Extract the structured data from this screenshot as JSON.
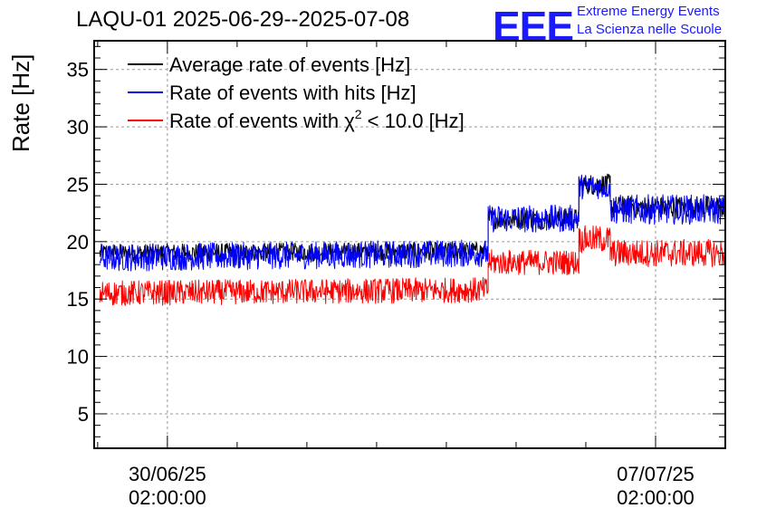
{
  "header": {
    "title": "LAQU-01 2025-06-29--2025-07-08",
    "logo_text": "EEE",
    "logo_line1": "Extreme Energy Events",
    "logo_line2": "La Scienza nelle Scuole"
  },
  "chart_data": {
    "type": "line",
    "title": "LAQU-01 2025-06-29--2025-07-08",
    "ylabel": "Rate [Hz]",
    "xlabel": "",
    "ylim": [
      2,
      37.5
    ],
    "xlim_days": [
      -1.05,
      8.0
    ],
    "yticks": [
      5,
      10,
      15,
      20,
      25,
      30,
      35
    ],
    "xticks": [
      {
        "day": 0,
        "label1": "30/06/25",
        "label2": "02:00:00"
      },
      {
        "day": 7,
        "label1": "07/07/25",
        "label2": "02:00:00"
      }
    ],
    "grid": true,
    "legend_position": "top-left",
    "series": [
      {
        "name": "Average rate of events [Hz]",
        "color": "#000000",
        "segments": [
          {
            "x0": -0.97,
            "x1": 4.6,
            "y0": 19.0,
            "y1": 19.2,
            "amp": 0.8
          },
          {
            "x0": 4.6,
            "x1": 5.9,
            "y0": 22.0,
            "y1": 22.0,
            "amp": 0.9
          },
          {
            "x0": 5.9,
            "x1": 6.35,
            "y0": 25.0,
            "y1": 25.0,
            "amp": 0.9
          },
          {
            "x0": 6.35,
            "x1": 8.0,
            "y0": 23.0,
            "y1": 23.0,
            "amp": 1.0
          }
        ]
      },
      {
        "name": "Rate of events with hits [Hz]",
        "color": "#0000ff",
        "segments": [
          {
            "x0": -0.97,
            "x1": 4.6,
            "y0": 18.6,
            "y1": 19.0,
            "amp": 1.2
          },
          {
            "x0": 4.6,
            "x1": 5.9,
            "y0": 22.0,
            "y1": 22.0,
            "amp": 1.2
          },
          {
            "x0": 5.9,
            "x1": 6.35,
            "y0": 24.8,
            "y1": 24.8,
            "amp": 1.1
          },
          {
            "x0": 6.35,
            "x1": 8.0,
            "y0": 22.8,
            "y1": 22.8,
            "amp": 1.3
          }
        ]
      },
      {
        "name": "Rate of events with χ² < 10.0 [Hz]",
        "color": "#ff0000",
        "segments": [
          {
            "x0": -0.97,
            "x1": 4.6,
            "y0": 15.5,
            "y1": 15.8,
            "amp": 1.1
          },
          {
            "x0": 4.6,
            "x1": 5.9,
            "y0": 18.2,
            "y1": 18.2,
            "amp": 1.1
          },
          {
            "x0": 5.9,
            "x1": 6.35,
            "y0": 20.2,
            "y1": 20.2,
            "amp": 1.2
          },
          {
            "x0": 6.35,
            "x1": 8.0,
            "y0": 19.0,
            "y1": 19.0,
            "amp": 1.2
          }
        ]
      }
    ],
    "legend": [
      {
        "label": "Average rate of events [Hz]",
        "color": "#000000"
      },
      {
        "label": "Rate of events with hits [Hz]",
        "color": "#0000ff"
      },
      {
        "label_prefix": "Rate of events with χ",
        "label_sup": "2",
        "label_suffix": " < 10.0 [Hz]",
        "color": "#ff0000"
      }
    ]
  }
}
